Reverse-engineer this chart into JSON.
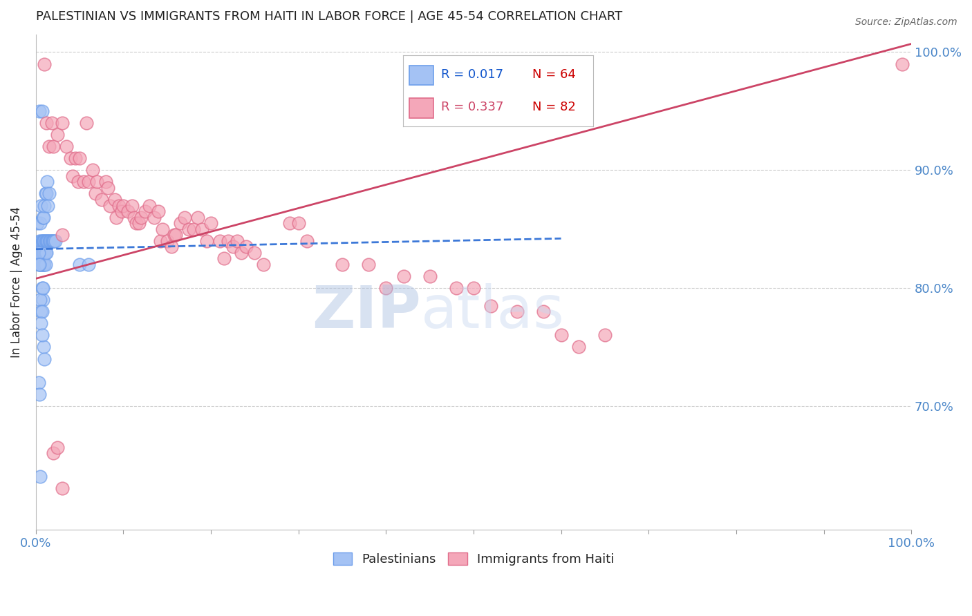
{
  "title": "PALESTINIAN VS IMMIGRANTS FROM HAITI IN LABOR FORCE | AGE 45-54 CORRELATION CHART",
  "source": "Source: ZipAtlas.com",
  "ylabel": "In Labor Force | Age 45-54",
  "ytick_labels": [
    "100.0%",
    "90.0%",
    "80.0%",
    "70.0%"
  ],
  "ytick_values": [
    1.0,
    0.9,
    0.8,
    0.7
  ],
  "legend_blue_r": "R = 0.017",
  "legend_blue_n": "N = 64",
  "legend_pink_r": "R = 0.337",
  "legend_pink_n": "N = 82",
  "blue_color": "#a4c2f4",
  "pink_color": "#f4a7b9",
  "blue_edge_color": "#6d9eeb",
  "pink_edge_color": "#e06c8a",
  "blue_line_color": "#3c78d8",
  "pink_line_color": "#cc4466",
  "blue_r_color": "#1155cc",
  "pink_r_color": "#cc4466",
  "n_color": "#cc0000",
  "blue_scatter_x": [
    0.002,
    0.004,
    0.004,
    0.005,
    0.005,
    0.005,
    0.006,
    0.006,
    0.006,
    0.006,
    0.007,
    0.007,
    0.007,
    0.007,
    0.007,
    0.008,
    0.008,
    0.008,
    0.008,
    0.008,
    0.009,
    0.009,
    0.009,
    0.009,
    0.009,
    0.01,
    0.01,
    0.01,
    0.01,
    0.01,
    0.011,
    0.011,
    0.011,
    0.011,
    0.012,
    0.012,
    0.012,
    0.013,
    0.013,
    0.014,
    0.014,
    0.015,
    0.015,
    0.016,
    0.017,
    0.018,
    0.019,
    0.02,
    0.021,
    0.022,
    0.003,
    0.003,
    0.004,
    0.005,
    0.006,
    0.007,
    0.008,
    0.05,
    0.06,
    0.003,
    0.004,
    0.005,
    0.006,
    0.007
  ],
  "blue_scatter_y": [
    0.855,
    0.95,
    0.84,
    0.855,
    0.83,
    0.82,
    0.87,
    0.84,
    0.83,
    0.82,
    0.95,
    0.84,
    0.83,
    0.82,
    0.8,
    0.86,
    0.84,
    0.83,
    0.82,
    0.79,
    0.86,
    0.84,
    0.83,
    0.82,
    0.75,
    0.87,
    0.84,
    0.83,
    0.82,
    0.74,
    0.88,
    0.84,
    0.83,
    0.82,
    0.88,
    0.84,
    0.83,
    0.89,
    0.84,
    0.87,
    0.84,
    0.88,
    0.84,
    0.84,
    0.84,
    0.84,
    0.84,
    0.84,
    0.84,
    0.84,
    0.83,
    0.82,
    0.82,
    0.79,
    0.78,
    0.78,
    0.8,
    0.82,
    0.82,
    0.72,
    0.71,
    0.64,
    0.77,
    0.76
  ],
  "pink_scatter_x": [
    0.01,
    0.012,
    0.015,
    0.018,
    0.02,
    0.025,
    0.03,
    0.03,
    0.035,
    0.04,
    0.042,
    0.045,
    0.048,
    0.05,
    0.055,
    0.058,
    0.06,
    0.065,
    0.068,
    0.07,
    0.075,
    0.08,
    0.082,
    0.085,
    0.09,
    0.092,
    0.095,
    0.098,
    0.1,
    0.105,
    0.11,
    0.112,
    0.115,
    0.118,
    0.12,
    0.125,
    0.13,
    0.135,
    0.14,
    0.142,
    0.145,
    0.15,
    0.155,
    0.158,
    0.16,
    0.165,
    0.17,
    0.175,
    0.18,
    0.185,
    0.19,
    0.195,
    0.2,
    0.21,
    0.215,
    0.22,
    0.225,
    0.23,
    0.235,
    0.24,
    0.25,
    0.26,
    0.29,
    0.3,
    0.31,
    0.35,
    0.38,
    0.4,
    0.42,
    0.45,
    0.48,
    0.5,
    0.52,
    0.55,
    0.58,
    0.6,
    0.62,
    0.65,
    0.99,
    0.02,
    0.025,
    0.03
  ],
  "pink_scatter_y": [
    0.99,
    0.94,
    0.92,
    0.94,
    0.92,
    0.93,
    0.94,
    0.845,
    0.92,
    0.91,
    0.895,
    0.91,
    0.89,
    0.91,
    0.89,
    0.94,
    0.89,
    0.9,
    0.88,
    0.89,
    0.875,
    0.89,
    0.885,
    0.87,
    0.875,
    0.86,
    0.87,
    0.865,
    0.87,
    0.865,
    0.87,
    0.86,
    0.855,
    0.855,
    0.86,
    0.865,
    0.87,
    0.86,
    0.865,
    0.84,
    0.85,
    0.84,
    0.835,
    0.845,
    0.845,
    0.855,
    0.86,
    0.85,
    0.85,
    0.86,
    0.85,
    0.84,
    0.855,
    0.84,
    0.825,
    0.84,
    0.835,
    0.84,
    0.83,
    0.835,
    0.83,
    0.82,
    0.855,
    0.855,
    0.84,
    0.82,
    0.82,
    0.8,
    0.81,
    0.81,
    0.8,
    0.8,
    0.785,
    0.78,
    0.78,
    0.76,
    0.75,
    0.76,
    0.99,
    0.66,
    0.665,
    0.63
  ],
  "blue_trend_x": [
    0.0,
    0.6
  ],
  "blue_trend_y": [
    0.833,
    0.842
  ],
  "pink_trend_x": [
    0.0,
    1.0
  ],
  "pink_trend_y": [
    0.808,
    1.007
  ],
  "xlim": [
    0.0,
    1.0
  ],
  "ylim": [
    0.595,
    1.015
  ],
  "background_color": "#ffffff",
  "grid_color": "#cccccc",
  "title_color": "#222222",
  "axis_color": "#4a86c8",
  "watermark_zip": "ZIP",
  "watermark_atlas": "atlas"
}
